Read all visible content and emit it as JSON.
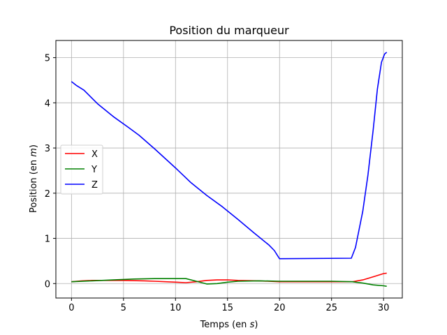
{
  "chart_data": {
    "type": "line",
    "title": "Position du marqueur",
    "xlabel_prefix": "Temps (en ",
    "xlabel_unit": "s",
    "xlabel_suffix": ")",
    "ylabel_prefix": "Position (en ",
    "ylabel_unit": "m",
    "ylabel_suffix": ")",
    "xlim": [
      -1.5,
      31.8
    ],
    "ylim": [
      -0.32,
      5.38
    ],
    "xticks": [
      0,
      5,
      10,
      15,
      20,
      25,
      30
    ],
    "yticks": [
      0,
      1,
      2,
      3,
      4,
      5
    ],
    "grid": true,
    "legend_position": "center-left",
    "series": [
      {
        "name": "X",
        "color": "#ff0000",
        "points": [
          [
            0,
            0.04
          ],
          [
            1,
            0.06
          ],
          [
            2,
            0.07
          ],
          [
            3,
            0.07
          ],
          [
            5,
            0.07
          ],
          [
            7,
            0.06
          ],
          [
            8,
            0.05
          ],
          [
            10,
            0.03
          ],
          [
            11,
            0.02
          ],
          [
            12,
            0.04
          ],
          [
            13,
            0.07
          ],
          [
            14,
            0.08
          ],
          [
            15,
            0.08
          ],
          [
            16,
            0.07
          ],
          [
            18,
            0.06
          ],
          [
            20,
            0.04
          ],
          [
            25,
            0.04
          ],
          [
            27,
            0.04
          ],
          [
            28,
            0.08
          ],
          [
            29,
            0.15
          ],
          [
            30,
            0.22
          ],
          [
            30.3,
            0.23
          ]
        ]
      },
      {
        "name": "Y",
        "color": "#008000",
        "points": [
          [
            0,
            0.04
          ],
          [
            2,
            0.06
          ],
          [
            4,
            0.08
          ],
          [
            6,
            0.1
          ],
          [
            8,
            0.11
          ],
          [
            11,
            0.11
          ],
          [
            12,
            0.05
          ],
          [
            13,
            -0.01
          ],
          [
            14,
            0.0
          ],
          [
            15,
            0.03
          ],
          [
            16,
            0.05
          ],
          [
            18,
            0.06
          ],
          [
            20,
            0.05
          ],
          [
            25,
            0.05
          ],
          [
            27,
            0.04
          ],
          [
            28,
            0.01
          ],
          [
            29,
            -0.03
          ],
          [
            30,
            -0.05
          ],
          [
            30.3,
            -0.06
          ]
        ]
      },
      {
        "name": "Z",
        "color": "#0000ff",
        "points": [
          [
            0,
            4.47
          ],
          [
            0.5,
            4.38
          ],
          [
            1.2,
            4.28
          ],
          [
            2.5,
            3.98
          ],
          [
            4,
            3.7
          ],
          [
            5.5,
            3.45
          ],
          [
            6.5,
            3.28
          ],
          [
            8,
            2.98
          ],
          [
            10,
            2.56
          ],
          [
            11.5,
            2.23
          ],
          [
            13,
            1.95
          ],
          [
            14.5,
            1.7
          ],
          [
            16,
            1.42
          ],
          [
            17.5,
            1.13
          ],
          [
            19,
            0.85
          ],
          [
            19.5,
            0.73
          ],
          [
            20,
            0.55
          ],
          [
            26.9,
            0.56
          ],
          [
            27.3,
            0.8
          ],
          [
            28,
            1.6
          ],
          [
            28.5,
            2.4
          ],
          [
            29,
            3.4
          ],
          [
            29.4,
            4.3
          ],
          [
            29.8,
            4.9
          ],
          [
            30.1,
            5.08
          ],
          [
            30.3,
            5.12
          ]
        ]
      }
    ]
  }
}
